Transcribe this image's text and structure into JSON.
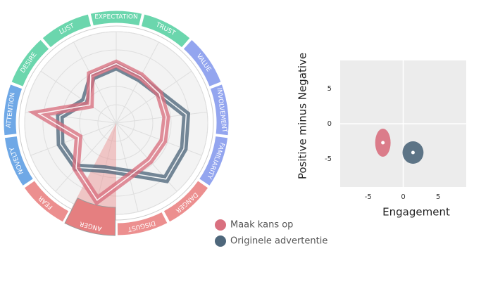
{
  "chart_data": [
    {
      "type": "radar",
      "categories": [
        "EXPECTATION",
        "TRUST",
        "VALUE",
        "INVOLVEMENT",
        "FAMILIARITY",
        "DANGER",
        "DISGUST",
        "ANGER",
        "FEAR",
        "NOVELTY",
        "ATTENTION",
        "DESIRE",
        "LUST"
      ],
      "category_colors": [
        "#6bd6ad",
        "#6bd6ad",
        "#93a5ef",
        "#93a5ef",
        "#93a5ef",
        "#ec8f8f",
        "#ec8f8f",
        "#e57f80",
        "#ec8f8f",
        "#6fa8e6",
        "#6fa8e6",
        "#6bd6ad",
        "#6bd6ad"
      ],
      "highlighted_category": "ANGER",
      "rlim": [
        0,
        100
      ],
      "rticks": [
        20,
        40,
        60,
        80,
        100
      ],
      "grid": true,
      "legend": "bottom-right",
      "series": [
        {
          "name": "Maak kans op",
          "color": "#d9707f",
          "values": [
            65,
            58,
            57,
            55,
            55,
            55,
            60,
            87,
            66,
            44,
            85,
            35,
            60
          ]
        },
        {
          "name": "Originele advertentie",
          "color": "#4e677b",
          "values": [
            62,
            55,
            57,
            77,
            79,
            82,
            56,
            52,
            65,
            65,
            62,
            42,
            57
          ]
        }
      ]
    },
    {
      "type": "scatter",
      "xlabel": "Engagement",
      "ylabel": "Positive minus Negative",
      "xlim": [
        -9,
        9
      ],
      "ylim": [
        -9,
        9
      ],
      "xticks": [
        -5,
        0,
        5
      ],
      "yticks": [
        -5,
        0,
        5
      ],
      "series": [
        {
          "color": "#d9707f",
          "x": [
            -2.9
          ],
          "y": [
            -2.7
          ],
          "x_spread": [
            1.1
          ],
          "y_spread": [
            2.0
          ]
        },
        {
          "color": "#4e677b",
          "x": [
            1.4
          ],
          "y": [
            -4.1
          ],
          "x_spread": [
            1.5
          ],
          "y_spread": [
            1.6
          ]
        }
      ]
    }
  ]
}
